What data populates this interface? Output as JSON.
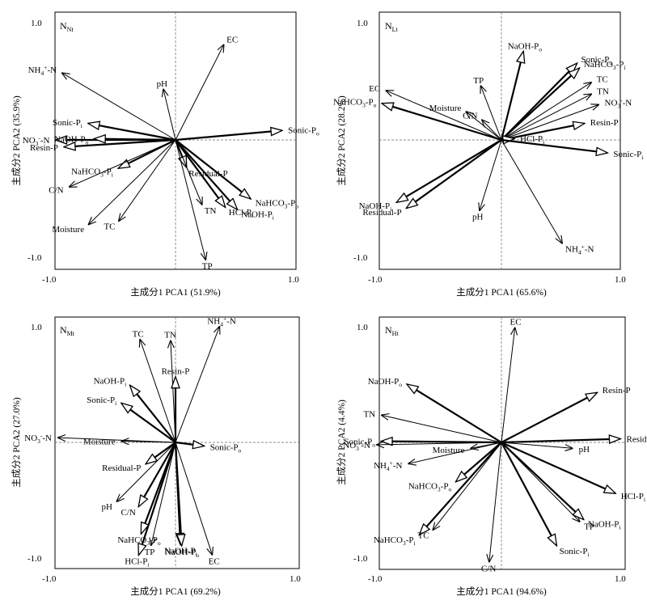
{
  "figure": {
    "panels": [
      {
        "id": "nt",
        "panel_label": "N",
        "panel_label_sub": "Nt",
        "xlabel": "主成分1 PCA1 (51.9%)",
        "ylabel": "主成分2 PCA2 (35.9%)",
        "x_tick_labels": [
          "-1.0",
          "1.0"
        ],
        "y_tick_labels": [
          "1.0",
          "-1.0"
        ]
      },
      {
        "id": "lt",
        "panel_label": "N",
        "panel_label_sub": "Lt",
        "xlabel": "主成分1 PCA1 (65.6%)",
        "ylabel": "主成分2 PCA2 (28.2%)",
        "x_tick_labels": [
          "-1.0",
          "1.0"
        ],
        "y_tick_labels": [
          "1.0",
          "-1.0"
        ]
      },
      {
        "id": "mt",
        "panel_label": "N",
        "panel_label_sub": "Mt",
        "xlabel": "主成分1 PCA1 (69.2%)",
        "ylabel": "主成分2 PCA2 (27.0%)",
        "x_tick_labels": [
          "-1.0",
          "1.0"
        ],
        "y_tick_labels": [
          "1.0",
          "-1.0"
        ]
      },
      {
        "id": "ht",
        "panel_label": "N",
        "panel_label_sub": "Ht",
        "xlabel": "主成分1 PCA1 (94.6%)",
        "ylabel": "主成分2 PCA2 (4.4%)",
        "x_tick_labels": [
          "-1.0",
          "1.0"
        ],
        "y_tick_labels": [
          "1.0",
          "-1.0"
        ]
      }
    ]
  },
  "chart_data": [
    {
      "type": "scatter",
      "subtype": "pca_biplot",
      "panel": "NNt",
      "xlabel": "主成分1 PCA1 (51.9%)",
      "ylabel": "主成分2 PCA2 (35.9%)",
      "xlim": [
        -1.0,
        1.0
      ],
      "ylim": [
        -1.0,
        1.0
      ],
      "vectors": [
        {
          "name": "EC",
          "x": 0.4,
          "y": 0.81,
          "style": "thin"
        },
        {
          "name": "NH4+-N",
          "x": -0.94,
          "y": 0.57,
          "style": "thin"
        },
        {
          "name": "pH",
          "x": -0.1,
          "y": 0.43,
          "style": "thin"
        },
        {
          "name": "Sonic-Pi",
          "x": -0.72,
          "y": 0.14,
          "style": "thick"
        },
        {
          "name": "NO3--N",
          "x": -0.99,
          "y": 0.0,
          "style": "thick"
        },
        {
          "name": "NaOH-Po",
          "x": -0.67,
          "y": 0.01,
          "style": "thick"
        },
        {
          "name": "Sonic-Po",
          "x": 0.88,
          "y": 0.08,
          "style": "thick"
        },
        {
          "name": "Resin-P",
          "x": -0.92,
          "y": -0.06,
          "style": "thick"
        },
        {
          "name": "NaHCO3-Pi",
          "x": -0.47,
          "y": -0.24,
          "style": "thick"
        },
        {
          "name": "C/N",
          "x": -0.88,
          "y": -0.4,
          "style": "thin"
        },
        {
          "name": "Moisture",
          "x": -0.72,
          "y": -0.72,
          "style": "thin"
        },
        {
          "name": "TC",
          "x": -0.47,
          "y": -0.69,
          "style": "thin"
        },
        {
          "name": "Residual-P",
          "x": 0.09,
          "y": -0.23,
          "style": "thick"
        },
        {
          "name": "NaHCO3-Po",
          "x": 0.62,
          "y": -0.5,
          "style": "thick"
        },
        {
          "name": "TN",
          "x": 0.22,
          "y": -0.55,
          "style": "thin"
        },
        {
          "name": "HCl-Pi",
          "x": 0.41,
          "y": -0.57,
          "style": "thick"
        },
        {
          "name": "NaOH-Pi",
          "x": 0.51,
          "y": -0.59,
          "style": "thick"
        },
        {
          "name": "TP",
          "x": 0.25,
          "y": -1.02,
          "style": "thin"
        }
      ]
    },
    {
      "type": "scatter",
      "subtype": "pca_biplot",
      "panel": "NLt",
      "xlabel": "主成分1 PCA1 (65.6%)",
      "ylabel": "主成分2 PCA2 (28.2%)",
      "xlim": [
        -1.0,
        1.0
      ],
      "ylim": [
        -1.0,
        1.0
      ],
      "vectors": [
        {
          "name": "NaOH-Po",
          "x": 0.18,
          "y": 0.75,
          "style": "thick"
        },
        {
          "name": "Sonic-Po",
          "x": 0.62,
          "y": 0.65,
          "style": "thick"
        },
        {
          "name": "NaHCO3-Pi",
          "x": 0.64,
          "y": 0.61,
          "style": "thick"
        },
        {
          "name": "TP",
          "x": -0.17,
          "y": 0.46,
          "style": "thin"
        },
        {
          "name": "TC",
          "x": 0.74,
          "y": 0.49,
          "style": "thin"
        },
        {
          "name": "EC",
          "x": -0.95,
          "y": 0.42,
          "style": "thin"
        },
        {
          "name": "TN",
          "x": 0.74,
          "y": 0.39,
          "style": "thin"
        },
        {
          "name": "NO3--N",
          "x": 0.8,
          "y": 0.3,
          "style": "thin"
        },
        {
          "name": "Moisture",
          "x": -0.29,
          "y": 0.24,
          "style": "thin"
        },
        {
          "name": "C/N",
          "x": -0.16,
          "y": 0.17,
          "style": "thin"
        },
        {
          "name": "NaHCO3-Po",
          "x": -0.98,
          "y": 0.31,
          "style": "thick"
        },
        {
          "name": "Resin-P",
          "x": 0.68,
          "y": 0.14,
          "style": "thick"
        },
        {
          "name": "HCl-Pi",
          "x": 0.1,
          "y": 0.01,
          "style": "thick"
        },
        {
          "name": "Sonic-Pi",
          "x": 0.87,
          "y": -0.11,
          "style": "thick"
        },
        {
          "name": "NaOH-Pi",
          "x": -0.86,
          "y": -0.53,
          "style": "thick"
        },
        {
          "name": "Residual-P",
          "x": -0.78,
          "y": -0.58,
          "style": "thick"
        },
        {
          "name": "pH",
          "x": -0.18,
          "y": -0.6,
          "style": "thin"
        },
        {
          "name": "NH4+-N",
          "x": 0.5,
          "y": -0.88,
          "style": "thin"
        }
      ]
    },
    {
      "type": "scatter",
      "subtype": "pca_biplot",
      "panel": "NMt",
      "xlabel": "主成分1 PCA1 (69.2%)",
      "ylabel": "主成分2 PCA2 (27.0%)",
      "xlim": [
        -1.0,
        1.0
      ],
      "ylim": [
        -1.0,
        1.0
      ],
      "vectors": [
        {
          "name": "NH4+-N",
          "x": 0.36,
          "y": 0.98,
          "style": "thin"
        },
        {
          "name": "TC",
          "x": -0.29,
          "y": 0.87,
          "style": "thin"
        },
        {
          "name": "TN",
          "x": -0.04,
          "y": 0.86,
          "style": "thin"
        },
        {
          "name": "Resin-P",
          "x": 0.0,
          "y": 0.55,
          "style": "thick"
        },
        {
          "name": "NaOH-Pi",
          "x": -0.37,
          "y": 0.48,
          "style": "thick"
        },
        {
          "name": "Sonic-Pi",
          "x": -0.44,
          "y": 0.33,
          "style": "thick"
        },
        {
          "name": "NO3--N",
          "x": -0.96,
          "y": 0.04,
          "style": "thin"
        },
        {
          "name": "Moisture",
          "x": -0.44,
          "y": 0.01,
          "style": "thin"
        },
        {
          "name": "Sonic-Po",
          "x": 0.23,
          "y": -0.03,
          "style": "thick"
        },
        {
          "name": "Residual-P",
          "x": -0.24,
          "y": -0.18,
          "style": "thick"
        },
        {
          "name": "pH",
          "x": -0.48,
          "y": -0.5,
          "style": "thin"
        },
        {
          "name": "C/N",
          "x": -0.3,
          "y": -0.54,
          "style": "thick"
        },
        {
          "name": "NaHCO3-Po",
          "x": -0.28,
          "y": -0.77,
          "style": "thick"
        },
        {
          "name": "NaOH-Pi",
          "x": 0.04,
          "y": -0.86,
          "style": "thick"
        },
        {
          "name": "NaOH-Po",
          "x": 0.05,
          "y": -0.87,
          "style": "thick"
        },
        {
          "name": "HCl-Pi",
          "x": -0.3,
          "y": -0.95,
          "style": "thick"
        },
        {
          "name": "TP",
          "x": -0.2,
          "y": -0.87,
          "style": "thin"
        },
        {
          "name": "EC",
          "x": 0.3,
          "y": -0.95,
          "style": "thin"
        }
      ]
    },
    {
      "type": "scatter",
      "subtype": "pca_biplot",
      "panel": "NHt",
      "xlabel": "主成分1 PCA1 (94.6%)",
      "ylabel": "主成分2 PCA2 (4.4%)",
      "xlim": [
        -1.0,
        1.0
      ],
      "ylim": [
        -1.0,
        1.0
      ],
      "vectors": [
        {
          "name": "EC",
          "x": 0.11,
          "y": 0.97,
          "style": "thin"
        },
        {
          "name": "NaOH-Po",
          "x": -0.77,
          "y": 0.49,
          "style": "thick"
        },
        {
          "name": "Resin-P",
          "x": 0.78,
          "y": 0.42,
          "style": "thick"
        },
        {
          "name": "TN",
          "x": -0.98,
          "y": 0.23,
          "style": "thin"
        },
        {
          "name": "Residual-P",
          "x": 0.97,
          "y": 0.03,
          "style": "thick"
        },
        {
          "name": "Sonic-Po",
          "x": -0.98,
          "y": 0.01,
          "style": "thick"
        },
        {
          "name": "NO3--N",
          "x": -1.02,
          "y": -0.02,
          "style": "thin"
        },
        {
          "name": "Moisture",
          "x": -0.25,
          "y": -0.05,
          "style": "thin"
        },
        {
          "name": "pH",
          "x": 0.58,
          "y": -0.05,
          "style": "thin"
        },
        {
          "name": "NH4+-N",
          "x": -0.76,
          "y": -0.18,
          "style": "thin"
        },
        {
          "name": "NaHCO3-Po",
          "x": -0.37,
          "y": -0.33,
          "style": "thick"
        },
        {
          "name": "HCl-Pi",
          "x": 0.93,
          "y": -0.43,
          "style": "thick"
        },
        {
          "name": "TP",
          "x": 0.64,
          "y": -0.67,
          "style": "thin"
        },
        {
          "name": "NaOH-Pi",
          "x": 0.67,
          "y": -0.65,
          "style": "thick"
        },
        {
          "name": "NaHCO3-Pi",
          "x": -0.67,
          "y": -0.78,
          "style": "thick"
        },
        {
          "name": "TC",
          "x": -0.56,
          "y": -0.74,
          "style": "thin"
        },
        {
          "name": "Sonic-Pi",
          "x": 0.45,
          "y": -0.87,
          "style": "thick"
        },
        {
          "name": "C/N",
          "x": -0.1,
          "y": -1.01,
          "style": "thin"
        }
      ]
    }
  ]
}
